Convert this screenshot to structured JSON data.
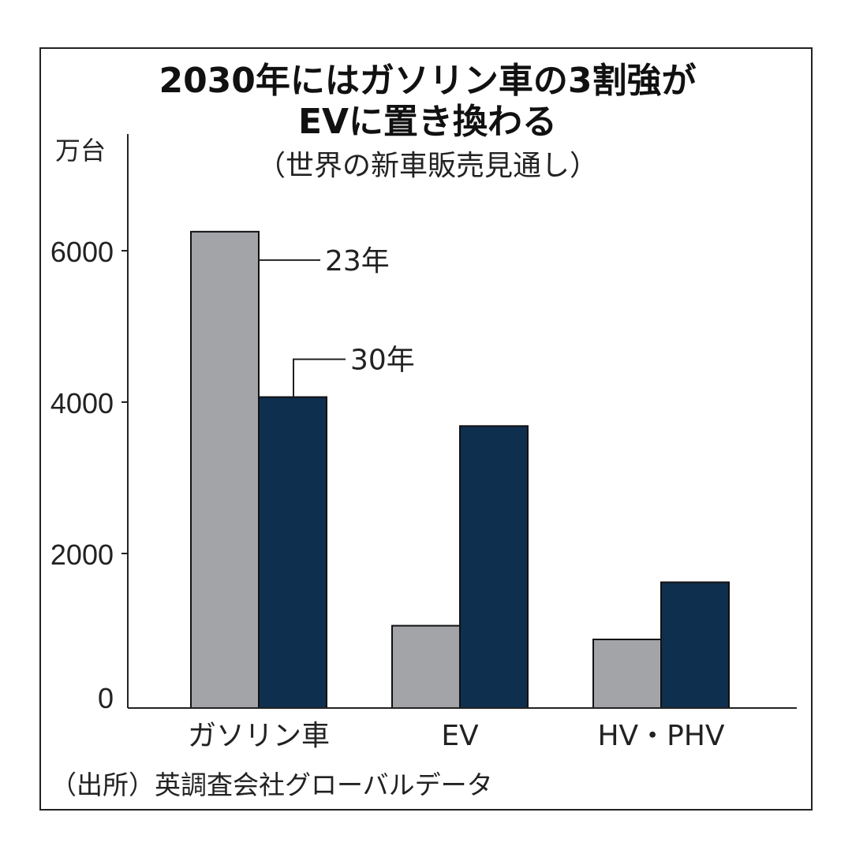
{
  "chart_data": {
    "type": "bar",
    "title_line1": "2030年にはガソリン車の3割強が",
    "title_line2": "EVに置き換わる",
    "subtitle": "（世界の新車販売見通し）",
    "ylabel": "万台",
    "ylim": [
      0,
      8000
    ],
    "yticks": [
      "6000",
      "4000",
      "2000",
      "0"
    ],
    "categories": [
      "ガソリン車",
      "EV",
      "HV・PHV"
    ],
    "series": [
      {
        "name": "23年",
        "values": [
          6250,
          1080,
          900
        ],
        "color": "#a3a4a8"
      },
      {
        "name": "30年",
        "values": [
          4080,
          3700,
          1650
        ],
        "color": "#0f2f4f"
      }
    ],
    "source": "（出所）英調査会社グローバルデータ",
    "grid": false,
    "legend": "callout labels on first group"
  }
}
